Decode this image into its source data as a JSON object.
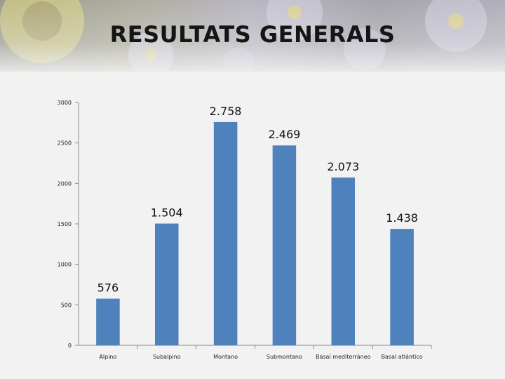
{
  "page": {
    "title": "RESULTATS GENERALS"
  },
  "chart_data": {
    "type": "bar",
    "title": "RESULTATS GENERALS",
    "categories": [
      "Alpino",
      "Subalpino",
      "Montano",
      "Submontano",
      "Basal mediterráneo",
      "Basal atlántico"
    ],
    "values": [
      576,
      1504,
      2758,
      2469,
      2073,
      1438
    ],
    "value_labels": [
      "576",
      "1.504",
      "2.758",
      "2.469",
      "2.073",
      "1.438"
    ],
    "yticks": [
      "0",
      "500",
      "1000",
      "1500",
      "2000",
      "2500",
      "3000"
    ],
    "ylim": [
      0,
      3000
    ],
    "xlabel": "",
    "ylabel": "",
    "grid": false,
    "legend": "none",
    "bar_color": "#4f81bd"
  }
}
